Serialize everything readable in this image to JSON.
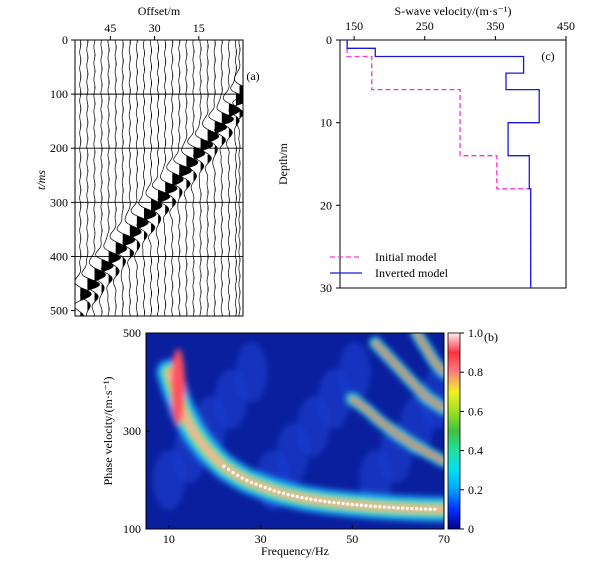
{
  "chart_data": [
    {
      "panel": "(a)",
      "type": "seismic-wiggle",
      "xlabel": "Offset/m",
      "ylabel": "t/ms",
      "x_ticks": [
        45,
        30,
        15
      ],
      "y_ticks": [
        0,
        100,
        200,
        300,
        400,
        500
      ],
      "xlim": [
        57,
        0
      ],
      "ylim": [
        0,
        510
      ],
      "trace_count": 24,
      "trace_offsets": [
        55.2,
        52.8,
        50.4,
        48,
        45.6,
        43.2,
        40.8,
        38.4,
        36,
        33.6,
        31.2,
        28.8,
        26.4,
        24,
        21.6,
        19.2,
        16.8,
        14.4,
        12,
        9.6,
        7.2,
        4.8,
        2.4,
        1.2
      ],
      "first_arrival_times_ms": [
        470,
        452,
        434,
        418,
        402,
        386,
        370,
        354,
        338,
        322,
        306,
        290,
        274,
        258,
        242,
        226,
        210,
        194,
        178,
        162,
        146,
        130,
        110,
        95
      ],
      "gridlines_ms": [
        100,
        200,
        300,
        400
      ]
    },
    {
      "panel": "(b)",
      "type": "heatmap",
      "xlabel": "Frequency/Hz",
      "ylabel": "Phase velocity/(m·s⁻¹)",
      "x_ticks": [
        10,
        30,
        50,
        70
      ],
      "y_ticks": [
        100,
        300,
        500
      ],
      "xlim": [
        5,
        70
      ],
      "ylim": [
        100,
        500
      ],
      "colorbar": {
        "ticks": [
          0,
          0.2,
          0.4,
          0.6,
          0.8,
          1.0
        ],
        "range": [
          0,
          1
        ]
      },
      "dispersion_ridge": {
        "frequency_hz": [
          10,
          11,
          12,
          13,
          14,
          15,
          16,
          18,
          20,
          22,
          24,
          26,
          28,
          30,
          33,
          36,
          40,
          45,
          50,
          55,
          60,
          65,
          70
        ],
        "velocity_ms": [
          420,
          390,
          365,
          342,
          322,
          305,
          290,
          265,
          245,
          228,
          215,
          204,
          195,
          188,
          178,
          170,
          162,
          155,
          150,
          146,
          143,
          141,
          140
        ]
      },
      "higher_modes": [
        {
          "frequency_hz": [
            50,
            53,
            56,
            60,
            64,
            68,
            70
          ],
          "velocity_ms": [
            365,
            345,
            320,
            292,
            268,
            248,
            238
          ]
        },
        {
          "frequency_hz": [
            55,
            58,
            62,
            66,
            70
          ],
          "velocity_ms": [
            480,
            450,
            410,
            370,
            345
          ]
        },
        {
          "frequency_hz": [
            64,
            66,
            68,
            70
          ],
          "velocity_ms": [
            500,
            470,
            440,
            420
          ]
        }
      ]
    },
    {
      "panel": "(c)",
      "type": "line",
      "title": "S-wave velocity/(m·s⁻¹)",
      "ylabel": "Depth/m",
      "x_ticks": [
        150,
        250,
        350,
        450
      ],
      "y_ticks": [
        0,
        10,
        20,
        30
      ],
      "xlim": [
        130,
        450
      ],
      "ylim": [
        0,
        30
      ],
      "legend_position": "bottom-left",
      "series": [
        {
          "name": "Initial model",
          "style": "dashed",
          "color": "#ff33cc",
          "velocity_ms": [
            140,
            140,
            175,
            175,
            300,
            300,
            352,
            352,
            400,
            400
          ],
          "depth_m": [
            0,
            2,
            2,
            6,
            6,
            14,
            14,
            18,
            18,
            30
          ]
        },
        {
          "name": "Inverted model",
          "style": "solid",
          "color": "#1a1adb",
          "velocity_ms": [
            140,
            140,
            180,
            180,
            390,
            390,
            365,
            365,
            412,
            412,
            368,
            368,
            398,
            398,
            400,
            400
          ],
          "depth_m": [
            0,
            1,
            1,
            2,
            2,
            4,
            4,
            6,
            6,
            10,
            10,
            14,
            14,
            18,
            18,
            30
          ]
        }
      ]
    }
  ]
}
